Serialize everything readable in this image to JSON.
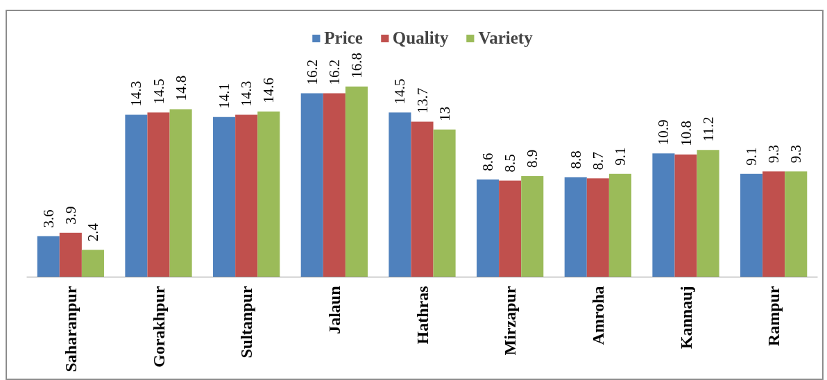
{
  "chart_data": {
    "type": "bar",
    "categories": [
      "Saharanpur",
      "Gorakhpur",
      "Sultanpur",
      "Jalaun",
      "Hathras",
      "Mirzapur",
      "Amroha",
      "Kannauj",
      "Rampur"
    ],
    "series": [
      {
        "name": "Price",
        "color": "#4f81bd",
        "values": [
          3.6,
          14.3,
          14.1,
          16.2,
          14.5,
          8.6,
          8.8,
          10.9,
          9.1
        ]
      },
      {
        "name": "Quality",
        "color": "#c0504d",
        "values": [
          3.9,
          14.5,
          14.3,
          16.2,
          13.7,
          8.5,
          8.7,
          10.8,
          9.3
        ]
      },
      {
        "name": "Variety",
        "color": "#9bbb59",
        "values": [
          2.4,
          14.8,
          14.6,
          16.8,
          13,
          8.9,
          9.1,
          11.2,
          9.3
        ]
      }
    ],
    "data_labels": true,
    "legend": "top",
    "tick_labels": "x"
  }
}
